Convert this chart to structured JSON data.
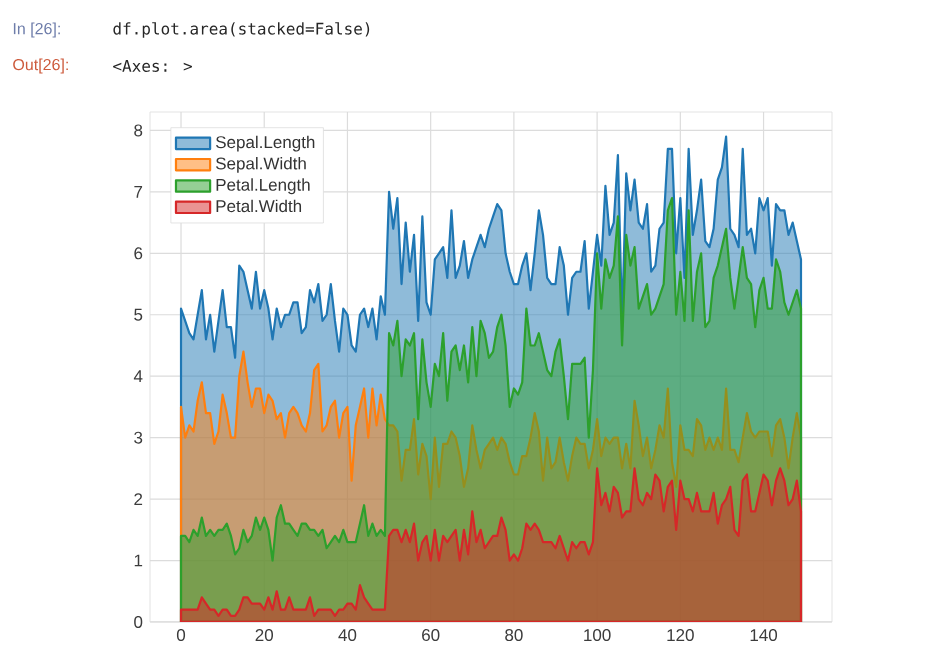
{
  "chart_data": {
    "type": "area",
    "annotations": [
      "In [26]:",
      "df.plot.area(stacked=False)",
      "Out[26]:",
      "<Axes: >"
    ],
    "x": [
      0,
      1,
      2,
      3,
      4,
      5,
      6,
      7,
      8,
      9,
      10,
      11,
      12,
      13,
      14,
      15,
      16,
      17,
      18,
      19,
      20,
      21,
      22,
      23,
      24,
      25,
      26,
      27,
      28,
      29,
      30,
      31,
      32,
      33,
      34,
      35,
      36,
      37,
      38,
      39,
      40,
      41,
      42,
      43,
      44,
      45,
      46,
      47,
      48,
      49,
      50,
      51,
      52,
      53,
      54,
      55,
      56,
      57,
      58,
      59,
      60,
      61,
      62,
      63,
      64,
      65,
      66,
      67,
      68,
      69,
      70,
      71,
      72,
      73,
      74,
      75,
      76,
      77,
      78,
      79,
      80,
      81,
      82,
      83,
      84,
      85,
      86,
      87,
      88,
      89,
      90,
      91,
      92,
      93,
      94,
      95,
      96,
      97,
      98,
      99,
      100,
      101,
      102,
      103,
      104,
      105,
      106,
      107,
      108,
      109,
      110,
      111,
      112,
      113,
      114,
      115,
      116,
      117,
      118,
      119,
      120,
      121,
      122,
      123,
      124,
      125,
      126,
      127,
      128,
      129,
      130,
      131,
      132,
      133,
      134,
      135,
      136,
      137,
      138,
      139,
      140,
      141,
      142,
      143,
      144,
      145,
      146,
      147,
      148,
      149
    ],
    "series": [
      {
        "name": "Sepal.Length",
        "color": "#1f77b4",
        "values": [
          5.1,
          4.9,
          4.7,
          4.6,
          5.0,
          5.4,
          4.6,
          5.0,
          4.4,
          4.9,
          5.4,
          4.8,
          4.8,
          4.3,
          5.8,
          5.7,
          5.4,
          5.1,
          5.7,
          5.1,
          5.4,
          5.1,
          4.6,
          5.1,
          4.8,
          5.0,
          5.0,
          5.2,
          5.2,
          4.7,
          4.8,
          5.4,
          5.2,
          5.5,
          4.9,
          5.0,
          5.5,
          4.9,
          4.4,
          5.1,
          5.0,
          4.5,
          4.4,
          5.0,
          5.1,
          4.8,
          5.1,
          4.6,
          5.3,
          5.0,
          7.0,
          6.4,
          6.9,
          5.5,
          6.5,
          5.7,
          6.3,
          4.9,
          6.6,
          5.2,
          5.0,
          5.9,
          6.0,
          6.1,
          5.6,
          6.7,
          5.6,
          5.8,
          6.2,
          5.6,
          5.9,
          6.1,
          6.3,
          6.1,
          6.4,
          6.6,
          6.8,
          6.7,
          6.0,
          5.7,
          5.5,
          5.5,
          5.8,
          6.0,
          5.4,
          6.0,
          6.7,
          6.3,
          5.6,
          5.5,
          5.5,
          6.1,
          5.8,
          5.0,
          5.6,
          5.7,
          5.7,
          6.2,
          5.1,
          5.7,
          6.3,
          5.8,
          7.1,
          6.3,
          6.5,
          7.6,
          4.9,
          7.3,
          6.7,
          7.2,
          6.5,
          6.4,
          6.8,
          5.7,
          5.8,
          6.4,
          6.5,
          7.7,
          7.7,
          6.0,
          6.9,
          5.6,
          7.7,
          6.3,
          6.7,
          7.2,
          6.2,
          6.1,
          6.4,
          7.2,
          7.4,
          7.9,
          6.4,
          6.3,
          6.1,
          7.7,
          6.3,
          6.4,
          6.0,
          6.9,
          6.7,
          6.9,
          5.8,
          6.8,
          6.7,
          6.7,
          6.3,
          6.5,
          6.2,
          5.9
        ]
      },
      {
        "name": "Sepal.Width",
        "color": "#ff7f0e",
        "values": [
          3.5,
          3.0,
          3.2,
          3.1,
          3.6,
          3.9,
          3.4,
          3.4,
          2.9,
          3.1,
          3.7,
          3.4,
          3.0,
          3.0,
          4.0,
          4.4,
          3.9,
          3.5,
          3.8,
          3.8,
          3.4,
          3.7,
          3.6,
          3.3,
          3.4,
          3.0,
          3.4,
          3.5,
          3.4,
          3.2,
          3.1,
          3.4,
          4.1,
          4.2,
          3.1,
          3.2,
          3.5,
          3.6,
          3.0,
          3.4,
          3.5,
          2.3,
          3.2,
          3.5,
          3.8,
          3.0,
          3.8,
          3.2,
          3.7,
          3.3,
          3.2,
          3.2,
          3.1,
          2.3,
          2.8,
          2.8,
          3.3,
          2.4,
          2.9,
          2.7,
          2.0,
          3.0,
          2.2,
          2.9,
          2.9,
          3.1,
          3.0,
          2.7,
          2.2,
          2.5,
          3.2,
          2.8,
          2.5,
          2.8,
          2.9,
          3.0,
          2.8,
          3.0,
          2.9,
          2.6,
          2.4,
          2.4,
          2.7,
          2.7,
          3.0,
          3.4,
          3.1,
          2.3,
          3.0,
          2.5,
          2.6,
          3.0,
          2.6,
          2.3,
          2.7,
          3.0,
          2.9,
          2.9,
          2.5,
          2.8,
          3.3,
          2.7,
          3.0,
          2.9,
          3.0,
          3.0,
          2.5,
          2.9,
          2.5,
          3.6,
          3.2,
          2.7,
          3.0,
          2.5,
          2.8,
          3.2,
          3.0,
          3.8,
          2.6,
          2.2,
          3.2,
          2.8,
          2.8,
          2.7,
          3.3,
          3.2,
          2.8,
          3.0,
          2.8,
          3.0,
          2.8,
          3.8,
          2.8,
          2.8,
          2.6,
          3.0,
          3.4,
          3.1,
          3.0,
          3.1,
          3.1,
          3.1,
          2.7,
          3.2,
          3.3,
          3.0,
          2.5,
          3.0,
          3.4,
          3.0
        ]
      },
      {
        "name": "Petal.Length",
        "color": "#2ca02c",
        "values": [
          1.4,
          1.4,
          1.3,
          1.5,
          1.4,
          1.7,
          1.4,
          1.5,
          1.4,
          1.5,
          1.5,
          1.6,
          1.4,
          1.1,
          1.2,
          1.5,
          1.3,
          1.4,
          1.7,
          1.5,
          1.7,
          1.5,
          1.0,
          1.7,
          1.9,
          1.6,
          1.6,
          1.5,
          1.4,
          1.6,
          1.6,
          1.5,
          1.5,
          1.4,
          1.5,
          1.2,
          1.3,
          1.4,
          1.3,
          1.5,
          1.3,
          1.3,
          1.3,
          1.6,
          1.9,
          1.4,
          1.6,
          1.4,
          1.5,
          1.4,
          4.7,
          4.5,
          4.9,
          4.0,
          4.6,
          4.5,
          4.7,
          3.3,
          4.6,
          3.9,
          3.5,
          4.2,
          4.0,
          4.7,
          3.6,
          4.4,
          4.5,
          4.1,
          4.5,
          3.9,
          4.8,
          4.0,
          4.9,
          4.7,
          4.3,
          4.4,
          4.8,
          5.0,
          4.5,
          3.5,
          3.8,
          3.7,
          3.9,
          5.1,
          4.5,
          4.5,
          4.7,
          4.4,
          4.1,
          4.0,
          4.4,
          4.6,
          4.0,
          3.3,
          4.2,
          4.2,
          4.2,
          4.3,
          3.0,
          4.1,
          6.0,
          5.1,
          5.9,
          5.6,
          5.8,
          6.6,
          4.5,
          6.3,
          5.8,
          6.1,
          5.1,
          5.3,
          5.5,
          5.0,
          5.1,
          5.3,
          5.5,
          6.7,
          6.9,
          5.0,
          5.7,
          4.9,
          6.7,
          4.9,
          5.7,
          6.0,
          4.8,
          4.9,
          5.6,
          5.8,
          6.1,
          6.4,
          5.6,
          5.1,
          5.6,
          6.1,
          5.6,
          5.5,
          4.8,
          5.4,
          5.6,
          5.1,
          5.1,
          5.9,
          5.7,
          5.2,
          5.0,
          5.2,
          5.4,
          5.1
        ]
      },
      {
        "name": "Petal.Width",
        "color": "#d62728",
        "values": [
          0.2,
          0.2,
          0.2,
          0.2,
          0.2,
          0.4,
          0.3,
          0.2,
          0.2,
          0.1,
          0.2,
          0.2,
          0.1,
          0.1,
          0.2,
          0.4,
          0.4,
          0.3,
          0.3,
          0.3,
          0.2,
          0.4,
          0.2,
          0.5,
          0.2,
          0.2,
          0.4,
          0.2,
          0.2,
          0.2,
          0.2,
          0.4,
          0.1,
          0.2,
          0.2,
          0.2,
          0.2,
          0.1,
          0.2,
          0.2,
          0.3,
          0.3,
          0.2,
          0.6,
          0.4,
          0.3,
          0.2,
          0.2,
          0.2,
          0.2,
          1.4,
          1.5,
          1.5,
          1.3,
          1.5,
          1.3,
          1.6,
          1.0,
          1.3,
          1.4,
          1.0,
          1.5,
          1.0,
          1.4,
          1.3,
          1.4,
          1.5,
          1.0,
          1.5,
          1.1,
          1.8,
          1.3,
          1.5,
          1.2,
          1.3,
          1.4,
          1.4,
          1.7,
          1.5,
          1.0,
          1.1,
          1.0,
          1.2,
          1.6,
          1.5,
          1.6,
          1.5,
          1.3,
          1.3,
          1.3,
          1.2,
          1.4,
          1.2,
          1.0,
          1.3,
          1.2,
          1.3,
          1.3,
          1.1,
          1.3,
          2.5,
          1.9,
          2.1,
          1.8,
          2.2,
          2.1,
          1.7,
          1.8,
          1.8,
          2.5,
          2.0,
          1.9,
          2.1,
          2.0,
          2.4,
          2.3,
          1.8,
          2.2,
          2.3,
          1.5,
          2.3,
          2.0,
          2.0,
          1.8,
          2.1,
          1.8,
          1.8,
          1.8,
          2.1,
          1.6,
          1.9,
          2.0,
          2.2,
          1.5,
          1.4,
          2.3,
          2.4,
          1.8,
          1.8,
          2.1,
          2.4,
          2.3,
          1.9,
          2.3,
          2.5,
          2.3,
          1.9,
          2.0,
          2.3,
          1.8
        ]
      }
    ],
    "xlim": [
      -7.45,
      156.45
    ],
    "ylim": [
      0,
      8.3
    ],
    "xticks": [
      0,
      20,
      40,
      60,
      80,
      100,
      120,
      140
    ],
    "yticks": [
      0,
      1,
      2,
      3,
      4,
      5,
      6,
      7,
      8
    ],
    "grid": true,
    "legend": "top left",
    "marker": "none",
    "line_style": "solid"
  }
}
